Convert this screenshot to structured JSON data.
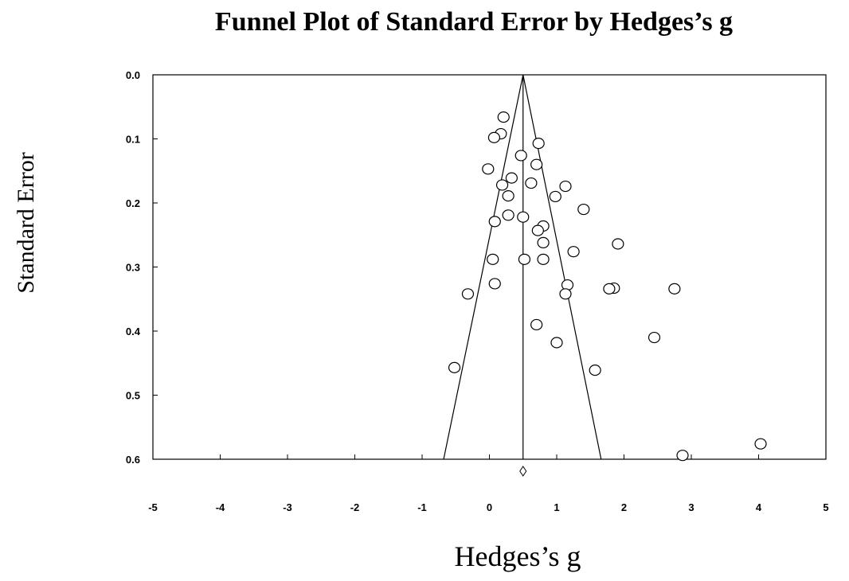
{
  "chart_data": {
    "type": "scatter",
    "title": "Funnel Plot of Standard Error by Hedges’s g",
    "xlabel": "Hedges’s g",
    "ylabel": "Standard Error",
    "xlim": [
      -5,
      5
    ],
    "ylim": [
      0.0,
      0.6
    ],
    "y_inverted": true,
    "x_ticks": [
      "-5",
      "-4",
      "-3",
      "-2",
      "-1",
      "0",
      "1",
      "2",
      "3",
      "4",
      "5"
    ],
    "y_ticks": [
      "0.0",
      "0.1",
      "0.2",
      "0.3",
      "0.4",
      "0.5",
      "0.6"
    ],
    "grid": false,
    "funnel": {
      "center": 0.5,
      "apex_se": 0.0,
      "base_se": 0.6,
      "base_left": -0.68,
      "base_right": 1.66
    },
    "summary_diamond": {
      "x": 0.5
    },
    "points": [
      {
        "x": 0.21,
        "y": 0.066
      },
      {
        "x": 0.17,
        "y": 0.092
      },
      {
        "x": 0.07,
        "y": 0.098
      },
      {
        "x": 0.73,
        "y": 0.107
      },
      {
        "x": 0.47,
        "y": 0.126
      },
      {
        "x": 0.7,
        "y": 0.14
      },
      {
        "x": -0.02,
        "y": 0.147
      },
      {
        "x": 0.33,
        "y": 0.161
      },
      {
        "x": 0.62,
        "y": 0.169
      },
      {
        "x": 0.19,
        "y": 0.172
      },
      {
        "x": 1.13,
        "y": 0.174
      },
      {
        "x": 0.28,
        "y": 0.189
      },
      {
        "x": 0.98,
        "y": 0.19
      },
      {
        "x": 1.4,
        "y": 0.21
      },
      {
        "x": 0.5,
        "y": 0.222
      },
      {
        "x": 0.28,
        "y": 0.219
      },
      {
        "x": 0.08,
        "y": 0.229
      },
      {
        "x": 0.8,
        "y": 0.236
      },
      {
        "x": 0.72,
        "y": 0.243
      },
      {
        "x": 0.8,
        "y": 0.262
      },
      {
        "x": 1.91,
        "y": 0.264
      },
      {
        "x": 1.25,
        "y": 0.276
      },
      {
        "x": 0.05,
        "y": 0.288
      },
      {
        "x": 0.52,
        "y": 0.288
      },
      {
        "x": 0.8,
        "y": 0.288
      },
      {
        "x": 0.08,
        "y": 0.326
      },
      {
        "x": 1.16,
        "y": 0.328
      },
      {
        "x": 1.85,
        "y": 0.333
      },
      {
        "x": 1.78,
        "y": 0.334
      },
      {
        "x": 2.75,
        "y": 0.334
      },
      {
        "x": -0.32,
        "y": 0.342
      },
      {
        "x": 1.13,
        "y": 0.342
      },
      {
        "x": 0.7,
        "y": 0.39
      },
      {
        "x": 2.45,
        "y": 0.41
      },
      {
        "x": 1.0,
        "y": 0.418
      },
      {
        "x": -0.52,
        "y": 0.457
      },
      {
        "x": 1.57,
        "y": 0.461
      },
      {
        "x": 4.03,
        "y": 0.576
      },
      {
        "x": 2.87,
        "y": 0.594
      }
    ]
  }
}
